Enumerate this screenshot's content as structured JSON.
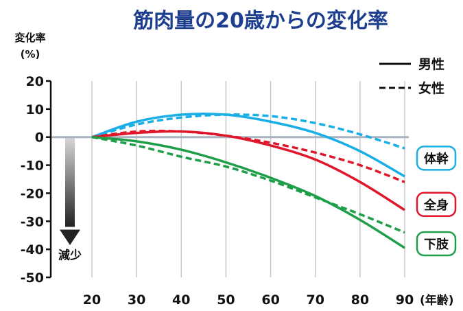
{
  "chart_data": {
    "type": "line",
    "title": "筋肉量の20歳からの変化率",
    "ylabel_line1": "変化率",
    "ylabel_line2": "(%)",
    "xunit": "(年齢)",
    "x_ticks": [
      20,
      30,
      40,
      50,
      60,
      70,
      80,
      90
    ],
    "y_ticks": [
      20,
      10,
      0,
      -10,
      -20,
      -30,
      -40,
      -50
    ],
    "xlim": [
      10,
      90
    ],
    "ylim": [
      -50,
      20
    ],
    "grid_x": true,
    "legend": {
      "placement": "top-right",
      "male": "男性",
      "female": "女性"
    },
    "decrease_label": "減少",
    "series": [
      {
        "category": "体幹",
        "sex": "男性",
        "color": "#1aaee6",
        "x": [
          20,
          30,
          40,
          50,
          60,
          70,
          80,
          90
        ],
        "y": [
          0,
          5.5,
          8,
          8,
          5.5,
          1.5,
          -5,
          -14
        ]
      },
      {
        "category": "体幹",
        "sex": "女性",
        "color": "#1aaee6",
        "x": [
          20,
          30,
          40,
          50,
          60,
          70,
          80,
          90
        ],
        "y": [
          0,
          4.5,
          7,
          8,
          7.5,
          5,
          1,
          -4
        ]
      },
      {
        "category": "全身",
        "sex": "男性",
        "color": "#e0162b",
        "x": [
          20,
          30,
          40,
          50,
          60,
          70,
          80,
          90
        ],
        "y": [
          0,
          1.5,
          2,
          0.5,
          -3,
          -8,
          -16,
          -26
        ]
      },
      {
        "category": "全身",
        "sex": "女性",
        "color": "#e0162b",
        "x": [
          20,
          30,
          40,
          50,
          60,
          70,
          80,
          90
        ],
        "y": [
          0,
          2,
          2,
          0.5,
          -2,
          -5.5,
          -10,
          -16
        ]
      },
      {
        "category": "下肢",
        "sex": "男性",
        "color": "#1e9e48",
        "x": [
          20,
          30,
          40,
          50,
          60,
          70,
          80,
          90
        ],
        "y": [
          0,
          -1.5,
          -4.5,
          -9,
          -14.5,
          -21,
          -29.5,
          -39.5
        ]
      },
      {
        "category": "下肢",
        "sex": "女性",
        "color": "#1e9e48",
        "x": [
          20,
          30,
          40,
          50,
          60,
          70,
          80,
          90
        ],
        "y": [
          0,
          -3,
          -7,
          -10.5,
          -15.5,
          -21.5,
          -27.5,
          -34
        ]
      }
    ],
    "category_labels": [
      {
        "label": "体幹",
        "color": "#1aaee6",
        "y": -7.5
      },
      {
        "label": "全身",
        "color": "#e0162b",
        "y": -24
      },
      {
        "label": "下肢",
        "color": "#1e9e48",
        "y": -38
      }
    ]
  }
}
